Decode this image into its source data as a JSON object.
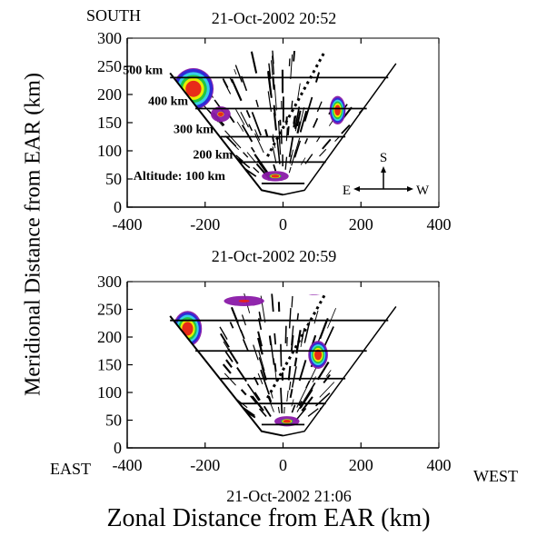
{
  "figure": {
    "ylabel": "Meridional Distance from EAR (km)",
    "xlabel": "Zonal Distance from EAR (km)",
    "east_label": "EAST",
    "west_label": "WEST",
    "south_label": "SOUTH"
  },
  "compass": {
    "north_letter": "S",
    "east_letter": "E",
    "west_letter": "W"
  },
  "colors": {
    "red": "#e8201a",
    "yellow": "#f4f000",
    "green": "#22c43a",
    "cyan": "#38d8e8",
    "blue": "#2a2ad8",
    "purple": "#8a1aa8"
  },
  "chart_data": [
    {
      "type": "heatmap",
      "title": "21-Oct-2002 20:52",
      "xlim": [
        -400,
        400
      ],
      "ylim": [
        0,
        300
      ],
      "x_ticks": [
        -400,
        -200,
        0,
        200,
        400
      ],
      "y_ticks": [
        0,
        50,
        100,
        150,
        200,
        250,
        300
      ],
      "altitude_rings": [
        {
          "label": "500 km",
          "y": 230,
          "x_from": -290,
          "x_to": 270
        },
        {
          "label": "400 km",
          "y": 175,
          "x_from": -225,
          "x_to": 215
        },
        {
          "label": "300 km",
          "y": 125,
          "x_from": -160,
          "x_to": 160
        },
        {
          "label": "200 km",
          "y": 80,
          "x_from": -110,
          "x_to": 110
        },
        {
          "label": "Altitude: 100 km",
          "y": 42,
          "x_from": -55,
          "x_to": 55
        }
      ],
      "echo_regions": [
        {
          "name": "east-patch",
          "x": -230,
          "y": 210,
          "sx": 45,
          "sy": 32,
          "peak": 1.0
        },
        {
          "name": "west-patch",
          "x": 140,
          "y": 172,
          "sx": 18,
          "sy": 22,
          "peak": 0.9
        },
        {
          "name": "low-patch",
          "x": -20,
          "y": 55,
          "sx": 30,
          "sy": 8,
          "peak": 0.5
        },
        {
          "name": "tail-patch",
          "x": -160,
          "y": 165,
          "sx": 22,
          "sy": 12,
          "peak": 0.35
        }
      ]
    },
    {
      "type": "heatmap",
      "title": "21-Oct-2002 20:59",
      "xlim": [
        -400,
        400
      ],
      "ylim": [
        0,
        300
      ],
      "x_ticks": [
        -400,
        -200,
        0,
        200,
        400
      ],
      "y_ticks": [
        0,
        50,
        100,
        150,
        200,
        250,
        300
      ],
      "altitude_rings": [
        {
          "label": "",
          "y": 230,
          "x_from": -290,
          "x_to": 270
        },
        {
          "label": "",
          "y": 175,
          "x_from": -225,
          "x_to": 215
        },
        {
          "label": "",
          "y": 125,
          "x_from": -160,
          "x_to": 160
        },
        {
          "label": "",
          "y": 80,
          "x_from": -110,
          "x_to": 110
        },
        {
          "label": "",
          "y": 42,
          "x_from": -55,
          "x_to": 55
        }
      ],
      "echo_regions": [
        {
          "name": "east-patch",
          "x": -245,
          "y": 215,
          "sx": 32,
          "sy": 28,
          "peak": 0.95
        },
        {
          "name": "west-patch",
          "x": 90,
          "y": 168,
          "sx": 22,
          "sy": 22,
          "peak": 0.9
        },
        {
          "name": "top-patch",
          "x": 80,
          "y": 285,
          "sx": 25,
          "sy": 8,
          "peak": 0.6
        },
        {
          "name": "low-patch",
          "x": 10,
          "y": 48,
          "sx": 28,
          "sy": 8,
          "peak": 0.55
        },
        {
          "name": "upper-band",
          "x": -100,
          "y": 265,
          "sx": 45,
          "sy": 8,
          "peak": 0.3
        }
      ]
    }
  ],
  "next_title_fragment": "21-Oct-2002 21:06"
}
